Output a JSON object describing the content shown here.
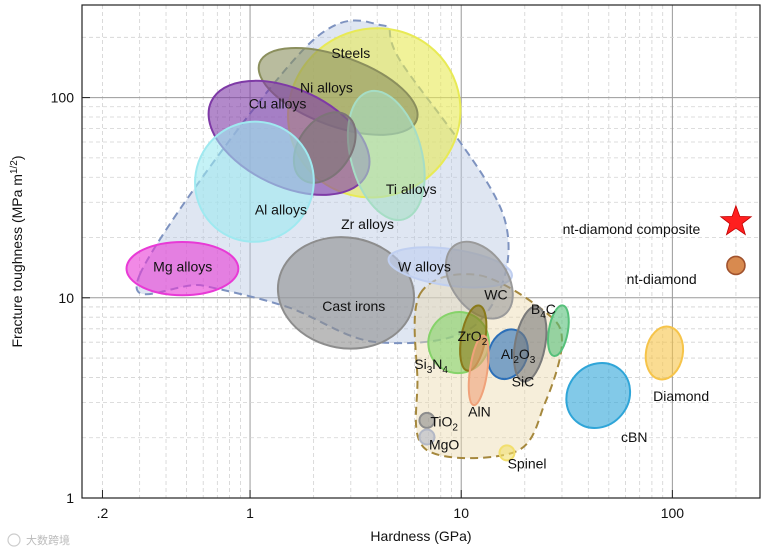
{
  "chart_data": {
    "type": "scatter",
    "title": "",
    "xlabel": "Hardness (GPa)",
    "ylabel": "Fracture toughness (MPa m",
    "ylabel_sup": "1/2",
    "ylabel_close": ")",
    "x_scale": "log",
    "y_scale": "log",
    "xlim": [
      0.16,
      260
    ],
    "ylim": [
      1,
      290
    ],
    "x_ticks": [
      {
        "v": 0.2,
        "label": ".2"
      },
      {
        "v": 1,
        "label": "1"
      },
      {
        "v": 10,
        "label": "10"
      },
      {
        "v": 100,
        "label": "100"
      }
    ],
    "y_ticks": [
      {
        "v": 1,
        "label": "1"
      },
      {
        "v": 10,
        "label": "10"
      },
      {
        "v": 100,
        "label": "100"
      }
    ],
    "grid": true,
    "groups": [
      {
        "name": "metals",
        "fill": "#b8c7e3",
        "stroke": "#7e93c0",
        "x": [
          0.3,
          1.8,
          4.2,
          5.2,
          16,
          12,
          4,
          1.5,
          0.6,
          0.3
        ],
        "y": [
          13,
          175,
          230,
          150,
          25,
          7.5,
          6,
          9,
          11.5,
          13
        ]
      },
      {
        "name": "ceramics",
        "fill": "#ecd9ad",
        "stroke": "#a5883d",
        "x": [
          6.4,
          12,
          25,
          30,
          25,
          18,
          6.8,
          6.2,
          6.4
        ],
        "y": [
          10.5,
          13,
          8.5,
          6,
          3,
          1.7,
          1.75,
          4,
          10.5
        ]
      }
    ],
    "materials": [
      {
        "name": "Steels",
        "x_range": [
          1.5,
          10
        ],
        "y_range": [
          32,
          220
        ],
        "color": "#e8ea55",
        "label": "Steels",
        "lx": 3,
        "ly": 158
      },
      {
        "name": "Ni alloys",
        "x_range": [
          1.05,
          6.5
        ],
        "y_range": [
          72,
          160
        ],
        "color": "#8b8f5d",
        "label": "Ni alloys",
        "lx": 2.3,
        "ly": 106
      },
      {
        "name": "Cu alloys",
        "x_range": [
          0.6,
          3.9
        ],
        "y_range": [
          36,
          110
        ],
        "color": "#7e3aa6",
        "label": "Cu alloys",
        "lx": 1.35,
        "ly": 88
      },
      {
        "name": "Ti alloys",
        "x_range": [
          3,
          6.5
        ],
        "y_range": [
          24,
          110
        ],
        "color": "#a6ddc5",
        "label": "Ti alloys",
        "lx": 5.8,
        "ly": 33
      },
      {
        "name": "Zr alloys",
        "x_range": [
          1.7,
          3
        ],
        "y_range": [
          36,
          88
        ],
        "color": "#7d7478",
        "label": "Zr alloys",
        "lx": 3.6,
        "ly": 22
      },
      {
        "name": "Al alloys",
        "x_range": [
          0.55,
          2
        ],
        "y_range": [
          19,
          76
        ],
        "color": "#9fe9f0",
        "label": "Al alloys",
        "lx": 1.4,
        "ly": 26
      },
      {
        "name": "Mg alloys",
        "x_range": [
          0.26,
          0.88
        ],
        "y_range": [
          10.3,
          19
        ],
        "color": "#e83ad6",
        "label": "Mg alloys",
        "lx": 0.48,
        "ly": 13.5
      },
      {
        "name": "Cast irons",
        "x_range": [
          1.35,
          6
        ],
        "y_range": [
          5.6,
          20
        ],
        "color": "#8d8d8d",
        "label": "Cast irons",
        "lx": 3.1,
        "ly": 8.6
      },
      {
        "name": "W alloys",
        "x_range": [
          4.5,
          17.5
        ],
        "y_range": [
          11.5,
          17.5
        ],
        "color": "#c0cff0",
        "label": "W alloys",
        "lx": 6.7,
        "ly": 13.5
      },
      {
        "name": "WC",
        "x_range": [
          9,
          16.5
        ],
        "y_range": [
          7.5,
          20
        ],
        "color": "#9a9a9a",
        "label": "WC",
        "lx": 14.6,
        "ly": 9.8
      },
      {
        "name": "B4C",
        "x_range": [
          26,
          32
        ],
        "y_range": [
          5.1,
          9.2
        ],
        "color": "#56c07a",
        "label": "B",
        "label_sub": "4",
        "label_tail": "C",
        "lx": 24.5,
        "ly": 8.3
      },
      {
        "name": "ZrO2",
        "x_range": [
          7,
          13.5
        ],
        "y_range": [
          4.2,
          8.5
        ],
        "color": "#86d36a",
        "label": "ZrO",
        "label_sub": "2",
        "lx": 11.3,
        "ly": 6.1
      },
      {
        "name": "Si3N4",
        "x_range": [
          10,
          13
        ],
        "y_range": [
          4.3,
          9.2
        ],
        "color": "#8a7a1a",
        "label": "Si",
        "label_sub": "3",
        "label_tail": "N",
        "label_sub2": "4",
        "lx": 7.2,
        "ly": 4.4
      },
      {
        "name": "Al2O3",
        "x_range": [
          13.5,
          20.5
        ],
        "y_range": [
          3.9,
          7
        ],
        "color": "#2c6fb8",
        "label": "Al",
        "label_sub": "2",
        "label_tail": "O",
        "label_sub2": "3",
        "lx": 18.6,
        "ly": 4.95
      },
      {
        "name": "SiC",
        "x_range": [
          18,
          25
        ],
        "y_range": [
          3.8,
          9.1
        ],
        "color": "#7a7a7a",
        "label": "SiC",
        "lx": 19.6,
        "ly": 3.6
      },
      {
        "name": "AlN",
        "x_range": [
          11,
          13.3
        ],
        "y_range": [
          2.9,
          6.5
        ],
        "color": "#f0a27a",
        "label": "AlN",
        "lx": 12.2,
        "ly": 2.55
      },
      {
        "name": "cBN",
        "x_range": [
          32,
          62
        ],
        "y_range": [
          2.2,
          4.8
        ],
        "color": "#2fa5d8",
        "label": "cBN",
        "lx": 66,
        "ly": 1.9
      },
      {
        "name": "Diamond",
        "x_range": [
          75,
          112
        ],
        "y_range": [
          3.9,
          7.2
        ],
        "color": "#f6c44a",
        "label": "Diamond",
        "lx": 110,
        "ly": 3.05
      },
      {
        "name": "Spinel",
        "x_range": [
          15.5,
          17.5
        ],
        "y_range": [
          1.55,
          1.82
        ],
        "color": "#f2df6e",
        "label": "Spinel",
        "lx": 20.5,
        "ly": 1.4
      },
      {
        "name": "TiO2",
        "x_range": [
          6.4,
          7.4
        ],
        "y_range": [
          2.25,
          2.65
        ],
        "color": "#8d8d8d",
        "label": "TiO",
        "label_sub": "2",
        "lx": 8.3,
        "ly": 2.28
      },
      {
        "name": "MgO",
        "x_range": [
          6.4,
          7.4
        ],
        "y_range": [
          1.85,
          2.2
        ],
        "color": "#b3b8c6",
        "label": "MgO",
        "lx": 8.3,
        "ly": 1.75
      },
      {
        "name": "nt-diamond",
        "x": 200,
        "y": 14.5,
        "color": "#d88a4f",
        "marker": "circle",
        "label": "nt-diamond",
        "lx": 89,
        "ly": 11.7
      },
      {
        "name": "nt-diamond composite",
        "x": 200,
        "y": 24,
        "color": "#ff1f1f",
        "marker": "star",
        "label": "nt-diamond composite",
        "lx": 64,
        "ly": 20.8
      }
    ]
  },
  "watermark": "大数跨境"
}
